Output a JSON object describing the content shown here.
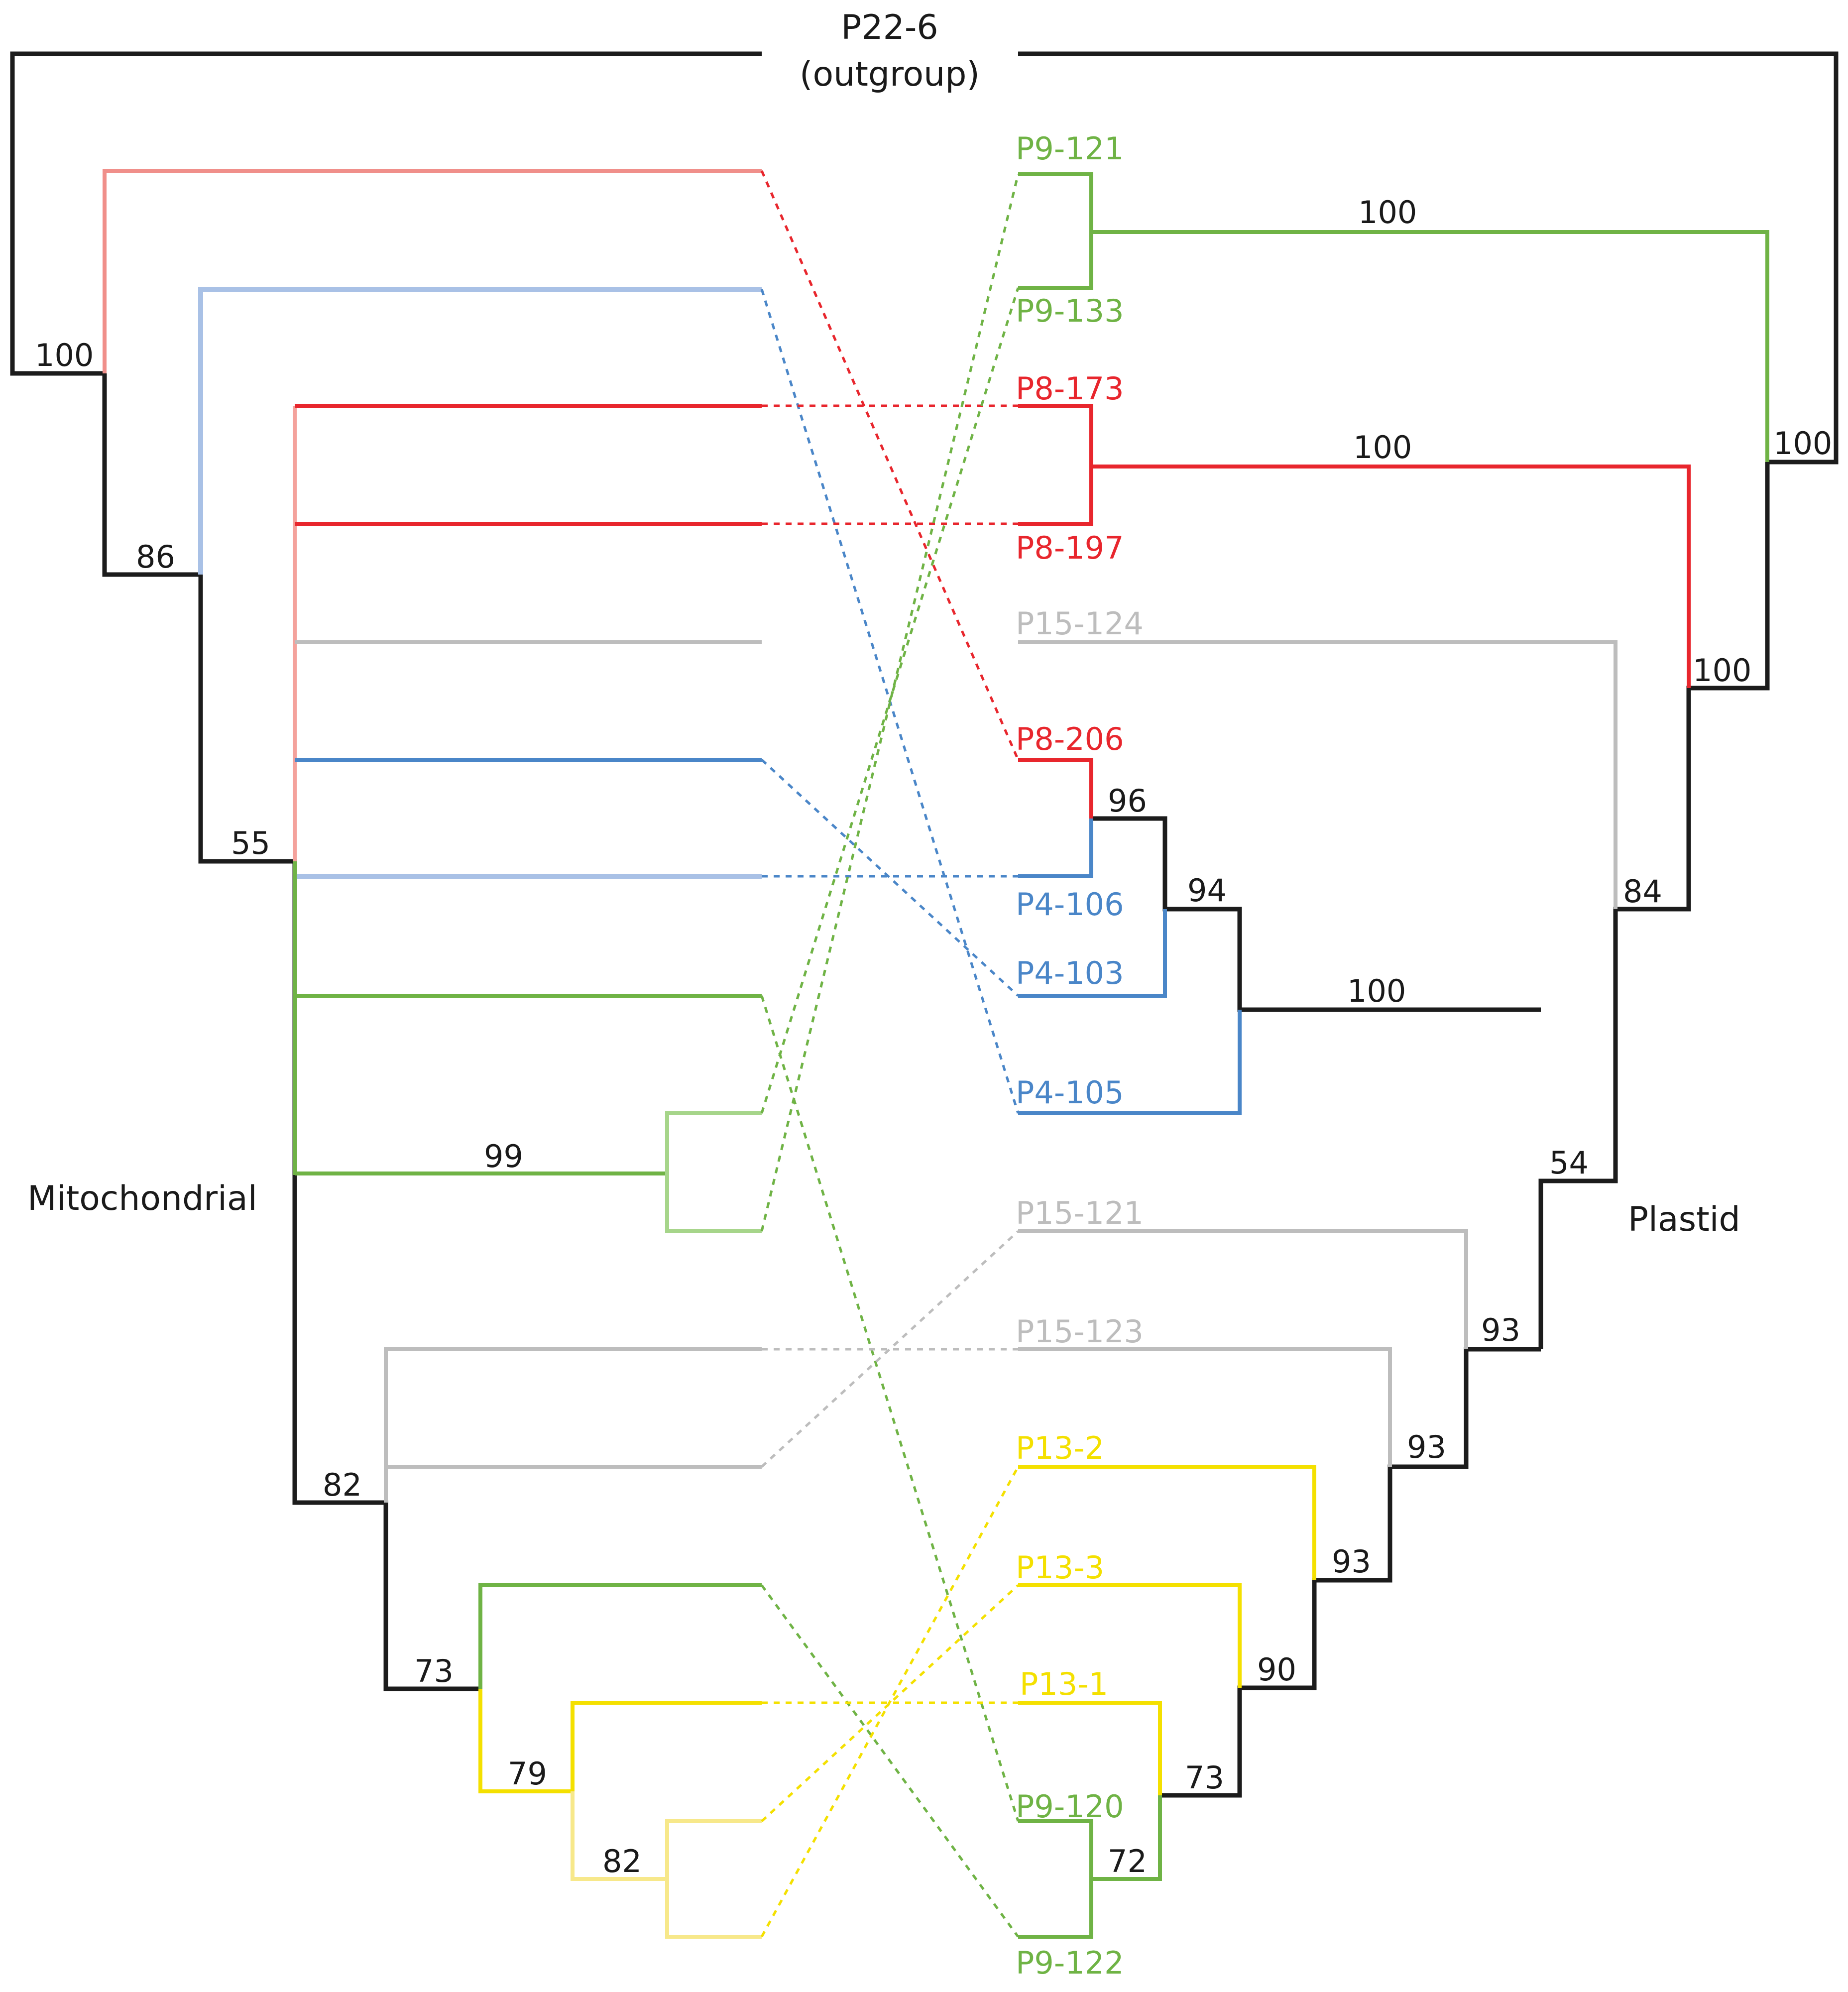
{
  "outgroup": {
    "name": "P22-6",
    "note": "(outgroup)"
  },
  "trees": {
    "left_label": "Mitochondrial",
    "right_label": "Plastid"
  },
  "colors": {
    "black": "#1c1c1c",
    "red": "#e8262d",
    "red_light": "#f4a29c",
    "blue": "#4a86c8",
    "blue_light": "#a9c1e6",
    "green": "#6fb345",
    "green_light": "#a6d58a",
    "gray": "#bdbdbd",
    "yellow": "#f4e000",
    "yellow_light": "#f7e88a"
  },
  "taxa": [
    {
      "key": "p9_121",
      "name": "P9-121",
      "group": "green"
    },
    {
      "key": "p9_133",
      "name": "P9-133",
      "group": "green"
    },
    {
      "key": "p8_173",
      "name": "P8-173",
      "group": "red"
    },
    {
      "key": "p8_197",
      "name": "P8-197",
      "group": "red"
    },
    {
      "key": "p15_124",
      "name": "P15-124",
      "group": "gray"
    },
    {
      "key": "p8_206",
      "name": "P8-206",
      "group": "red"
    },
    {
      "key": "p4_106",
      "name": "P4-106",
      "group": "blue"
    },
    {
      "key": "p4_103",
      "name": "P4-103",
      "group": "blue"
    },
    {
      "key": "p4_105",
      "name": "P4-105",
      "group": "blue"
    },
    {
      "key": "p15_121",
      "name": "P15-121",
      "group": "gray"
    },
    {
      "key": "p15_123",
      "name": "P15-123",
      "group": "gray"
    },
    {
      "key": "p13_2",
      "name": "P13-2",
      "group": "yellow"
    },
    {
      "key": "p13_3",
      "name": "P13-3",
      "group": "yellow"
    },
    {
      "key": "p13_1",
      "name": "P13-1",
      "group": "yellow"
    },
    {
      "key": "p9_120",
      "name": "P9-120",
      "group": "green"
    },
    {
      "key": "p9_122",
      "name": "P9-122",
      "group": "green"
    }
  ],
  "left_support": {
    "root": "100",
    "n86": "86",
    "n55": "55",
    "n99": "99",
    "n82a": "82",
    "n73": "73",
    "n79": "79",
    "n82b": "82"
  },
  "right_support": {
    "root": "100",
    "p9_pair": "100",
    "p8_pair": "100",
    "n100c": "100",
    "n84": "84",
    "n54": "54",
    "n100d": "100",
    "n94": "94",
    "n96": "96",
    "n93a": "93",
    "n93b": "93",
    "n93c": "93",
    "n90": "90",
    "n73": "73",
    "n72": "72"
  }
}
